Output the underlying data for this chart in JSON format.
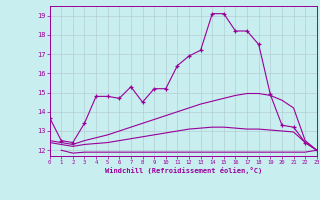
{
  "xlabel": "Windchill (Refroidissement éolien,°C)",
  "xlim": [
    0,
    23
  ],
  "ylim": [
    11.7,
    19.5
  ],
  "xticks": [
    0,
    1,
    2,
    3,
    4,
    5,
    6,
    7,
    8,
    9,
    10,
    11,
    12,
    13,
    14,
    15,
    16,
    17,
    18,
    19,
    20,
    21,
    22,
    23
  ],
  "yticks": [
    12,
    13,
    14,
    15,
    16,
    17,
    18,
    19
  ],
  "bg_color": "#c8eef0",
  "line_color": "#990099",
  "grid_color": "#b0c8cc",
  "lines": [
    {
      "x": [
        0,
        1,
        2,
        3,
        4,
        5,
        6,
        7,
        8,
        9,
        10,
        11,
        12,
        13,
        14,
        15,
        16,
        17,
        18,
        19,
        20,
        21,
        22,
        23
      ],
      "y": [
        13.7,
        12.5,
        12.4,
        13.4,
        14.8,
        14.8,
        14.7,
        15.3,
        14.5,
        15.2,
        15.2,
        16.4,
        16.9,
        17.2,
        19.1,
        19.1,
        18.2,
        18.2,
        17.5,
        14.9,
        13.3,
        13.2,
        12.4,
        12.0
      ],
      "has_markers": true
    },
    {
      "x": [
        0,
        1,
        2,
        3,
        4,
        5,
        6,
        7,
        8,
        9,
        10,
        11,
        12,
        13,
        14,
        15,
        16,
        17,
        18,
        19,
        20,
        21,
        22,
        23
      ],
      "y": [
        12.5,
        12.4,
        12.3,
        12.5,
        12.65,
        12.8,
        13.0,
        13.2,
        13.4,
        13.6,
        13.8,
        14.0,
        14.2,
        14.4,
        14.55,
        14.7,
        14.85,
        14.95,
        14.95,
        14.85,
        14.6,
        14.2,
        12.5,
        12.0
      ],
      "has_markers": false
    },
    {
      "x": [
        0,
        1,
        2,
        3,
        4,
        5,
        6,
        7,
        8,
        9,
        10,
        11,
        12,
        13,
        14,
        15,
        16,
        17,
        18,
        19,
        20,
        21,
        22,
        23
      ],
      "y": [
        12.4,
        12.3,
        12.2,
        12.3,
        12.35,
        12.4,
        12.5,
        12.6,
        12.7,
        12.8,
        12.9,
        13.0,
        13.1,
        13.15,
        13.2,
        13.2,
        13.15,
        13.1,
        13.1,
        13.05,
        13.0,
        12.95,
        12.4,
        12.0
      ],
      "has_markers": false
    },
    {
      "x": [
        1,
        2,
        3,
        4,
        5,
        6,
        7,
        8,
        9,
        10,
        11,
        12,
        13,
        14,
        15,
        16,
        17,
        18,
        19,
        20,
        21,
        22,
        23
      ],
      "y": [
        12.0,
        11.85,
        11.9,
        11.9,
        11.9,
        11.9,
        11.9,
        11.9,
        11.9,
        11.9,
        11.9,
        11.9,
        11.9,
        11.9,
        11.9,
        11.9,
        11.9,
        11.9,
        11.9,
        11.9,
        11.9,
        11.9,
        12.0
      ],
      "has_markers": false
    }
  ]
}
